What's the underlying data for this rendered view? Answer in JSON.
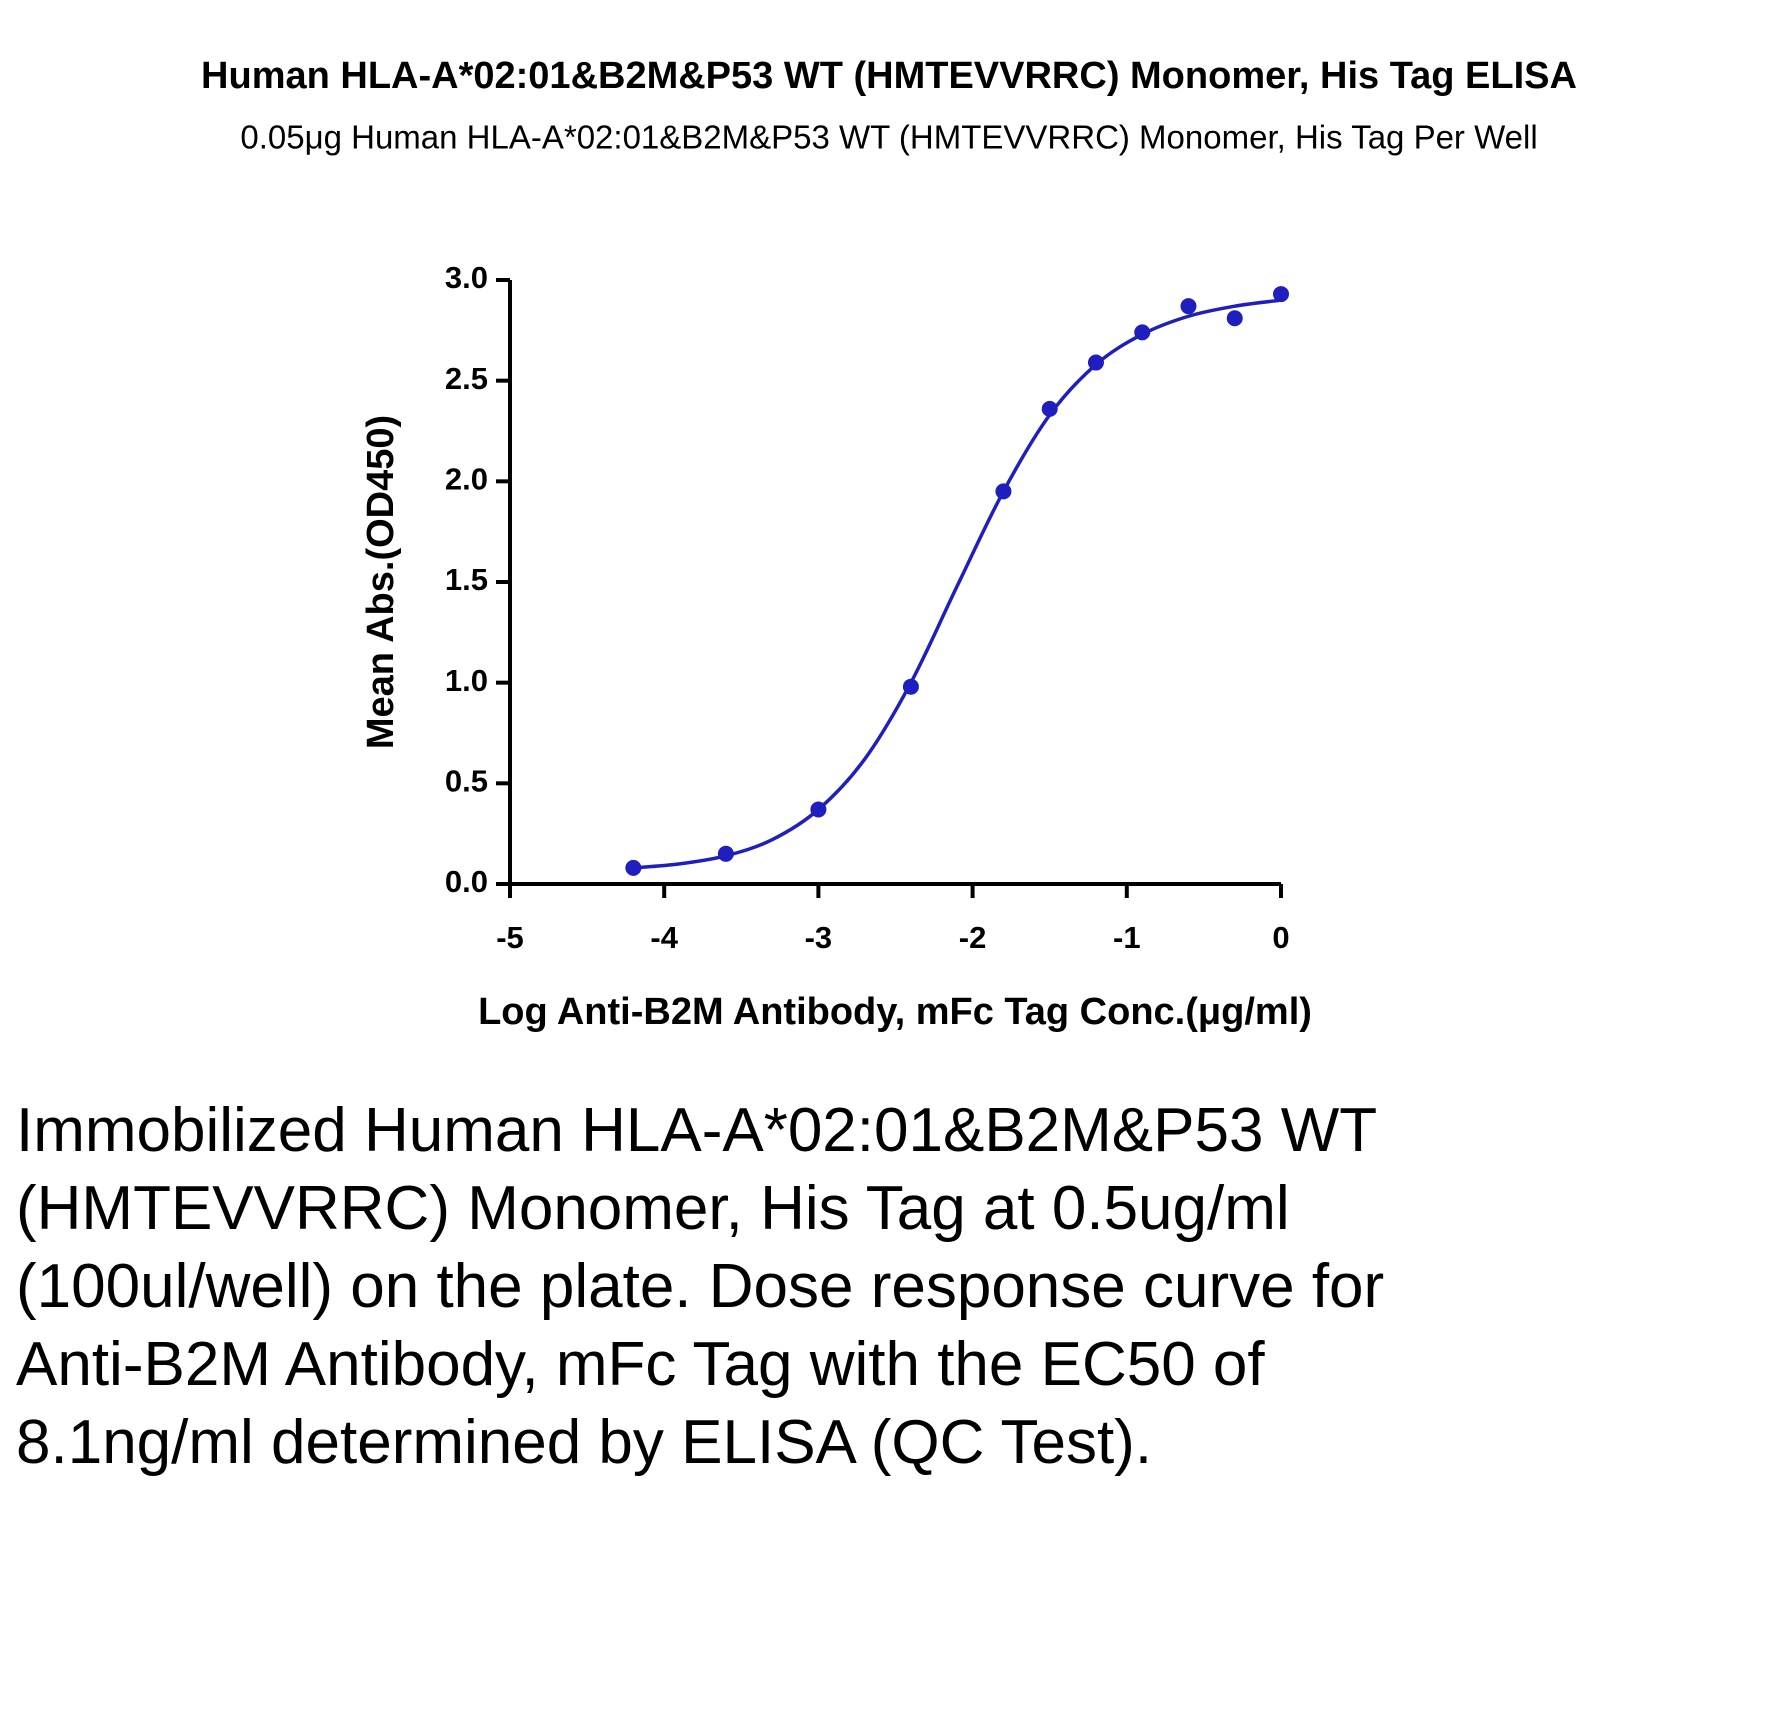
{
  "chart_data": {
    "type": "scatter",
    "title": "Human HLA-A*02:01&B2M&P53 WT (HMTEVVRRC) Monomer, His Tag ELISA",
    "subtitle": "0.05μg Human HLA-A*02:01&B2M&P53 WT (HMTEVVRRC) Monomer, His Tag Per Well",
    "x_label": "Log Anti-B2M Antibody, mFc Tag Conc.(μg/ml)",
    "y_label": "Mean Abs.(OD450)",
    "xlim": [
      -5,
      0
    ],
    "xticks": [
      -5,
      -4,
      -3,
      -2,
      -1,
      0
    ],
    "ylim": [
      0,
      3
    ],
    "yticks": [
      {
        "value": 0,
        "label": "0.0"
      },
      0.5,
      {
        "value": 1,
        "label": "1.0"
      },
      1.5,
      {
        "value": 2,
        "label": "2.0"
      },
      2.5,
      {
        "value": 3,
        "label": "3.0"
      }
    ],
    "series": [
      {
        "mode": "markers",
        "color": "#1f1fbf",
        "x": [
          -4.2,
          -3.6,
          -3,
          -2.4,
          -1.8,
          -1.5,
          -1.2,
          -0.9,
          -0.6,
          -0.3,
          0
        ],
        "values": [
          0.08,
          0.15,
          0.37,
          0.98,
          1.95,
          2.36,
          2.59,
          2.74,
          2.87,
          2.81,
          2.93
        ]
      },
      {
        "mode": "line",
        "color": "#1f1fbf",
        "x": [
          -4.2,
          -3.9,
          -3.6,
          -3.3,
          -3,
          -2.7,
          -2.4,
          -2.1,
          -1.8,
          -1.5,
          -1.2,
          -0.9,
          -0.6,
          -0.3,
          0
        ],
        "values": [
          0.08,
          0.1,
          0.14,
          0.22,
          0.37,
          0.62,
          1.0,
          1.48,
          1.95,
          2.33,
          2.58,
          2.73,
          2.82,
          2.87,
          2.9
        ]
      }
    ]
  },
  "description": "Immobilized Human HLA-A*02:01&B2M&P53 WT (HMTEVVRRC) Monomer, His Tag at 0.5ug/ml (100ul/well) on the plate. Dose response curve for Anti-B2M Antibody, mFc Tag with the EC50 of 8.1ng/ml determined by ELISA (QC Test)."
}
